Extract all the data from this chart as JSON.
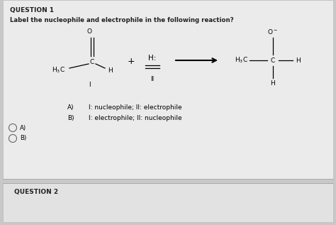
{
  "title": "QUESTION 1",
  "question_text": "Label the nucleophile and electrophile in the following reaction?",
  "bg_outer": "#c8c8c8",
  "bg_panel": "#ececec",
  "bg_q2": "#e0e0e0",
  "text_color": "#222222",
  "option_A_label": "A)",
  "option_A_text": "I: nucleophile; II: electrophile",
  "option_B_label": "B)",
  "option_B_text": "I: electrophile; II: nucleophile",
  "question2": "QUESTION 2"
}
